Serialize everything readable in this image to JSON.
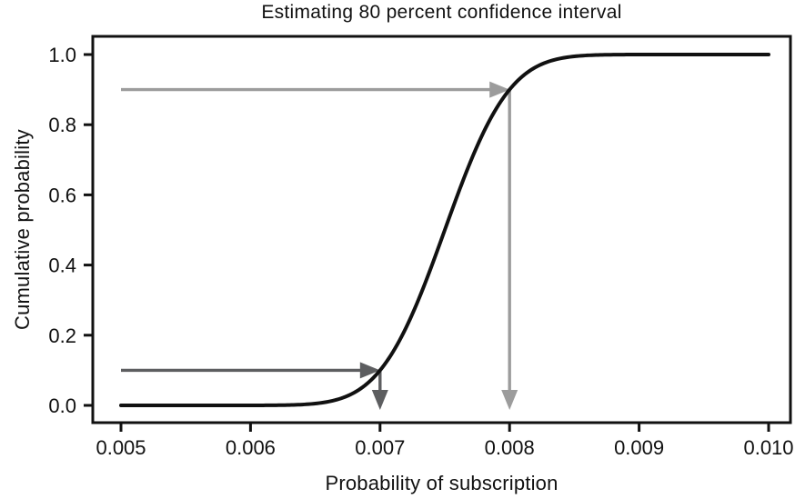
{
  "chart_data": {
    "type": "line",
    "title": "Estimating 80 percent confidence interval",
    "xlabel": "Probability of subscription",
    "ylabel": "Cumulative probability",
    "xlim": [
      0.005,
      0.01
    ],
    "ylim": [
      0.0,
      1.0
    ],
    "x_ticks": [
      0.005,
      0.006,
      0.007,
      0.008,
      0.009,
      0.01
    ],
    "x_tick_labels": [
      "0.005",
      "0.006",
      "0.007",
      "0.008",
      "0.009",
      "0.010"
    ],
    "y_ticks": [
      0.0,
      0.2,
      0.4,
      0.6,
      0.8,
      1.0
    ],
    "y_tick_labels": [
      "0.0",
      "0.2",
      "0.4",
      "0.6",
      "0.8",
      "1.0"
    ],
    "grid": false,
    "legend": "none",
    "axis_color": "#111111",
    "series": [
      {
        "name": "cumulative-probability-curve",
        "model": "normal_cdf",
        "mean": 0.0075,
        "sd": 0.00039,
        "color": "#111111",
        "points": [
          [
            0.005,
            0.0
          ],
          [
            0.0052,
            0.0
          ],
          [
            0.0054,
            0.0
          ],
          [
            0.0056,
            0.0
          ],
          [
            0.0058,
            0.0
          ],
          [
            0.006,
            0.0001
          ],
          [
            0.0062,
            0.0004
          ],
          [
            0.0064,
            0.0024
          ],
          [
            0.0066,
            0.0105
          ],
          [
            0.0068,
            0.0364
          ],
          [
            0.007,
            0.1
          ],
          [
            0.0072,
            0.2207
          ],
          [
            0.0074,
            0.3989
          ],
          [
            0.0075,
            0.5
          ],
          [
            0.0076,
            0.6011
          ],
          [
            0.0078,
            0.7793
          ],
          [
            0.008,
            0.9
          ],
          [
            0.0082,
            0.9636
          ],
          [
            0.0084,
            0.9895
          ],
          [
            0.0086,
            0.9976
          ],
          [
            0.0088,
            0.9996
          ],
          [
            0.009,
            0.9999
          ],
          [
            0.0092,
            1.0
          ],
          [
            0.0094,
            1.0
          ],
          [
            0.0096,
            1.0
          ],
          [
            0.0098,
            1.0
          ],
          [
            0.01,
            1.0
          ]
        ]
      }
    ],
    "annotations": [
      {
        "name": "upper-percentile-arrows",
        "percentile_y": 0.9,
        "from_x": 0.005,
        "bound_x": 0.008,
        "color": "#9c9c9c"
      },
      {
        "name": "lower-percentile-arrows",
        "percentile_y": 0.1,
        "from_x": 0.005,
        "bound_x": 0.007,
        "color": "#5d5e60"
      }
    ],
    "interval": {
      "confidence_percent": 80,
      "lower_bound": 0.007,
      "upper_bound": 0.008
    }
  }
}
